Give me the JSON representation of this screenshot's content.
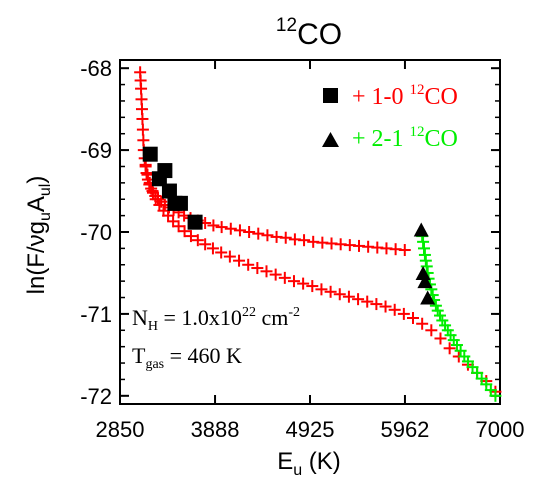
{
  "chart_data": {
    "type": "scatter",
    "title_base": "CO",
    "title_sup": "12",
    "xlabel_base": "E",
    "xlabel_sub": "u",
    "xlabel_unit": " (K)",
    "ylabel_prefix": "ln(F/νg",
    "ylabel_sub1": "u",
    "ylabel_mid": "A",
    "ylabel_sub2": "ul",
    "ylabel_suffix": ")",
    "xlim": [
      2850,
      7000
    ],
    "ylim": [
      -72.1,
      -67.9
    ],
    "xticks": [
      2850,
      3888,
      4925,
      5962,
      7000
    ],
    "xtick_labels": [
      "2850",
      "3888",
      "4925",
      "5962",
      "7000"
    ],
    "yticks": [
      -68,
      -69,
      -70,
      -71,
      -72
    ],
    "ytick_labels": [
      "-68",
      "-69",
      "-70",
      "-71",
      "-72"
    ],
    "legend": {
      "placement": "top-right",
      "entries": [
        {
          "symbol": "square",
          "plus": "+",
          "text": " 1-0 ",
          "sup": "12",
          "tail": "CO",
          "color": "#ff0000"
        },
        {
          "symbol": "triangle",
          "plus": "+",
          "text": " 2-1 ",
          "sup": "12",
          "tail": "CO",
          "color": "#00ee00"
        }
      ]
    },
    "annotations": {
      "nh_base": "N",
      "nh_sub": "H",
      "nh_eq": " = 1.0x10",
      "nh_sup": "22",
      "nh_unit": " cm",
      "nh_unit_sup": "-2",
      "t_base": "T",
      "t_sub": "gas",
      "t_eq": " = 460 K"
    },
    "model_colors": {
      "band_1_0": "#ff0000",
      "band_2_1": "#00ee00"
    },
    "series": [
      {
        "symbol": "plus",
        "color": "#ff0000",
        "x": [
          3070,
          3075,
          3080,
          3085,
          3090,
          3095,
          3100,
          3105,
          3110,
          3120,
          3130,
          3140,
          3155,
          3170,
          3190,
          3210,
          3235,
          3265,
          3300,
          3340,
          3385,
          3435,
          3490,
          3550,
          3620,
          3700,
          3780,
          3870,
          3960,
          4060,
          4160,
          4260,
          4360,
          4460,
          4560,
          4660,
          4760,
          4860,
          4960,
          5060,
          5160,
          5260,
          5360,
          5460,
          5560,
          5660,
          5760,
          5860,
          5960
        ],
        "y": [
          -68.05,
          -68.15,
          -68.25,
          -68.38,
          -68.5,
          -68.62,
          -68.75,
          -68.88,
          -69.0,
          -69.1,
          -69.2,
          -69.28,
          -69.36,
          -69.42,
          -69.47,
          -69.52,
          -69.56,
          -69.6,
          -69.63,
          -69.67,
          -69.7,
          -69.73,
          -69.76,
          -69.8,
          -69.83,
          -69.86,
          -69.89,
          -69.92,
          -69.94,
          -69.96,
          -69.98,
          -70.0,
          -70.02,
          -70.04,
          -70.06,
          -70.07,
          -70.09,
          -70.1,
          -70.12,
          -70.13,
          -70.14,
          -70.15,
          -70.16,
          -70.17,
          -70.18,
          -70.19,
          -70.2,
          -70.21,
          -70.22
        ]
      },
      {
        "symbol": "plus",
        "color": "#ff0000",
        "x": [
          3130,
          3150,
          3175,
          3205,
          3240,
          3280,
          3325,
          3375,
          3430,
          3490,
          3555,
          3625,
          3700,
          3780,
          3865,
          3955,
          4050,
          4150,
          4250,
          4350,
          4450,
          4550,
          4650,
          4750,
          4850,
          4950,
          5050,
          5150,
          5250,
          5350,
          5450,
          5550,
          5650,
          5750,
          5850,
          5950,
          6050,
          6150,
          6250,
          6350,
          6450,
          6550,
          6650,
          6750,
          6850,
          6950
        ],
        "y": [
          -69.18,
          -69.3,
          -69.4,
          -69.5,
          -69.6,
          -69.67,
          -69.74,
          -69.8,
          -69.87,
          -69.93,
          -69.99,
          -70.05,
          -70.1,
          -70.15,
          -70.2,
          -70.25,
          -70.3,
          -70.35,
          -70.4,
          -70.44,
          -70.48,
          -70.52,
          -70.56,
          -70.6,
          -70.63,
          -70.66,
          -70.7,
          -70.73,
          -70.76,
          -70.79,
          -70.82,
          -70.85,
          -70.88,
          -70.91,
          -70.95,
          -71.0,
          -71.05,
          -71.12,
          -71.2,
          -71.3,
          -71.42,
          -71.52,
          -71.62,
          -71.72,
          -71.82,
          -71.95
        ]
      },
      {
        "symbol": "plus",
        "color": "#00ee00",
        "x": [
          6150,
          6160,
          6170,
          6180,
          6190,
          6200,
          6210,
          6220,
          6235,
          6250,
          6265,
          6280,
          6300,
          6320,
          6345,
          6370,
          6400,
          6430,
          6460,
          6495,
          6530,
          6570,
          6610,
          6650,
          6700,
          6750,
          6800,
          6850,
          6900,
          6950
        ],
        "y": [
          -70.05,
          -70.12,
          -70.2,
          -70.28,
          -70.35,
          -70.42,
          -70.5,
          -70.57,
          -70.64,
          -70.7,
          -70.77,
          -70.83,
          -70.9,
          -70.96,
          -71.02,
          -71.08,
          -71.14,
          -71.2,
          -71.26,
          -71.32,
          -71.38,
          -71.45,
          -71.52,
          -71.58,
          -71.65,
          -71.72,
          -71.79,
          -71.86,
          -71.93,
          -72.0
        ]
      },
      {
        "symbol": "square",
        "color": "#000000",
        "x": [
          3180,
          3280,
          3340,
          3390,
          3450,
          3510,
          3670
        ],
        "y": [
          -69.05,
          -69.35,
          -69.25,
          -69.5,
          -69.65,
          -69.65,
          -69.88
        ]
      },
      {
        "symbol": "triangle",
        "color": "#000000",
        "x": [
          6140,
          6160,
          6180,
          6210
        ],
        "y": [
          -69.97,
          -70.5,
          -70.6,
          -70.8
        ]
      }
    ]
  }
}
